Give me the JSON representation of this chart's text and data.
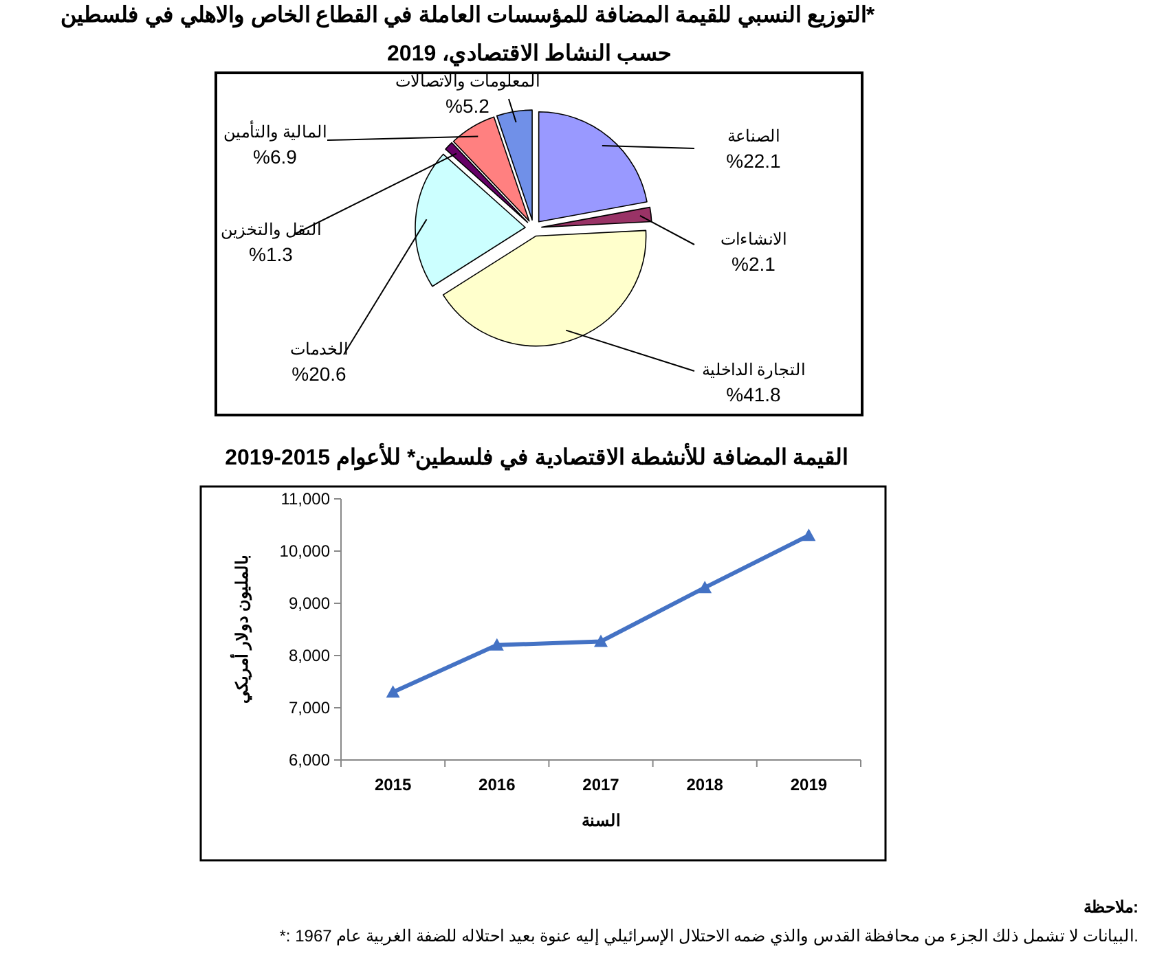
{
  "chart_data": [
    {
      "type": "pie",
      "title": "التوزيع النسبي للقيمة المضافة للمؤسسات العاملة في القطاع الخاص والاهلي في فلسطين*",
      "subtitle": "حسب النشاط الاقتصادي، 2019",
      "categories": [
        "الصناعة",
        "الانشاءات",
        "التجارة الداخلية",
        "الخدمات",
        "النقل والتخزين",
        "المالية والتأمين",
        "المعلومات والاتصالات"
      ],
      "values": [
        22.1,
        2.1,
        41.8,
        20.6,
        1.3,
        6.9,
        5.2
      ],
      "colors": [
        "#9999ff",
        "#993366",
        "#ffffcc",
        "#ccffff",
        "#660066",
        "#ff8080",
        "#7090e8"
      ],
      "value_labels": [
        "%22.1",
        "%2.1",
        "%41.8",
        "%20.6",
        "%1.3",
        "%6.9",
        "%5.2"
      ]
    },
    {
      "type": "line",
      "title": "القيمة المضافة للأنشطة الاقتصادية في فلسطين* للأعوام 2015-2019",
      "xlabel": "السنة",
      "ylabel": "بالمليون دولار أمريكي",
      "categories": [
        "2015",
        "2016",
        "2017",
        "2018",
        "2019"
      ],
      "series": [
        {
          "color": "#4472c4",
          "values": [
            7300,
            8200,
            8270,
            9300,
            10300
          ]
        }
      ],
      "ylim": [
        6000,
        11000
      ],
      "yticks": [
        {
          "value": 6000,
          "label": "6,000"
        },
        {
          "value": 7000,
          "label": "7,000"
        },
        {
          "value": 8000,
          "label": "8,000"
        },
        {
          "value": 9000,
          "label": "9,000"
        },
        {
          "value": 10000,
          "label": "10,000"
        },
        {
          "value": 11000,
          "label": "11,000"
        }
      ],
      "marker": "triangle",
      "line_style": "solid",
      "grid": false,
      "annotations": [
        "ملاحظة:",
        "*: البيانات لا تشمل ذلك الجزء من محافظة القدس والذي ضمه الاحتلال الإسرائيلي إليه عنوة بعيد احتلاله للضفة الغربية عام 1967."
      ]
    }
  ]
}
